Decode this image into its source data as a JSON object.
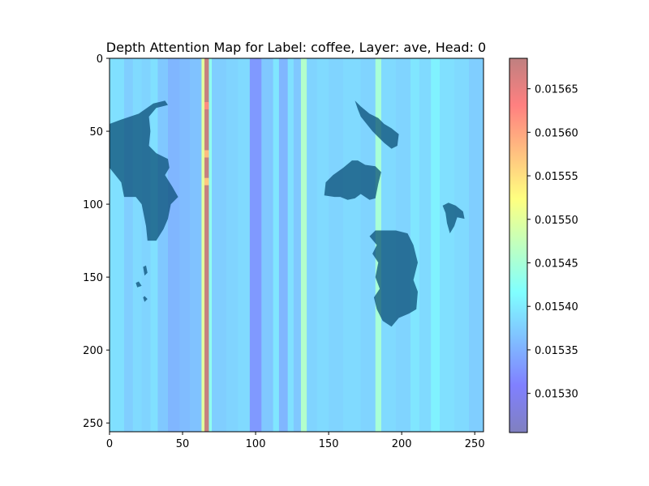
{
  "chart_data": {
    "type": "heatmap",
    "title": "Depth Attention Map for Label: coffee, Layer: ave, Head: 0",
    "xlabel": "",
    "ylabel": "",
    "xlim": [
      0,
      256
    ],
    "ylim": [
      256,
      0
    ],
    "grid": false,
    "colormap": "jet",
    "x_ticks": [
      0,
      50,
      100,
      150,
      200,
      250
    ],
    "y_ticks": [
      0,
      50,
      100,
      150,
      200,
      250
    ],
    "colorbar": {
      "vmin": 0.015255,
      "vmax": 0.015685,
      "ticks": [
        "0.01530",
        "0.01535",
        "0.01540",
        "0.01545",
        "0.01550",
        "0.01555",
        "0.01560",
        "0.01565"
      ],
      "tick_values": [
        0.0153,
        0.01535,
        0.0154,
        0.01545,
        0.0155,
        0.01555,
        0.0156,
        0.01565
      ]
    },
    "column_stripes": [
      {
        "x": [
          0,
          10
        ],
        "value": 0.01539
      },
      {
        "x": [
          10,
          16
        ],
        "value": 0.015375
      },
      {
        "x": [
          16,
          22
        ],
        "value": 0.015385
      },
      {
        "x": [
          22,
          28
        ],
        "value": 0.01538
      },
      {
        "x": [
          28,
          33
        ],
        "value": 0.01539
      },
      {
        "x": [
          33,
          40
        ],
        "value": 0.01537
      },
      {
        "x": [
          40,
          48
        ],
        "value": 0.015355
      },
      {
        "x": [
          48,
          55
        ],
        "value": 0.01536
      },
      {
        "x": [
          55,
          63
        ],
        "value": 0.015365
      },
      {
        "x": [
          63,
          65
        ],
        "value": 0.0155
      },
      {
        "x": [
          65,
          68
        ],
        "value": 0.01568
      },
      {
        "x": [
          68,
          70
        ],
        "value": 0.01543
      },
      {
        "x": [
          70,
          80
        ],
        "value": 0.015375
      },
      {
        "x": [
          80,
          88
        ],
        "value": 0.01538
      },
      {
        "x": [
          88,
          96
        ],
        "value": 0.015385
      },
      {
        "x": [
          96,
          104
        ],
        "value": 0.01533
      },
      {
        "x": [
          104,
          112
        ],
        "value": 0.01537
      },
      {
        "x": [
          112,
          116
        ],
        "value": 0.015395
      },
      {
        "x": [
          116,
          122
        ],
        "value": 0.015355
      },
      {
        "x": [
          122,
          126
        ],
        "value": 0.01539
      },
      {
        "x": [
          126,
          131
        ],
        "value": 0.01537
      },
      {
        "x": [
          131,
          135
        ],
        "value": 0.01546
      },
      {
        "x": [
          135,
          142
        ],
        "value": 0.01538
      },
      {
        "x": [
          142,
          150
        ],
        "value": 0.015385
      },
      {
        "x": [
          150,
          160
        ],
        "value": 0.01538
      },
      {
        "x": [
          160,
          172
        ],
        "value": 0.015385
      },
      {
        "x": [
          172,
          182
        ],
        "value": 0.01538
      },
      {
        "x": [
          182,
          186
        ],
        "value": 0.01545
      },
      {
        "x": [
          186,
          196
        ],
        "value": 0.015385
      },
      {
        "x": [
          196,
          206
        ],
        "value": 0.01538
      },
      {
        "x": [
          206,
          212
        ],
        "value": 0.015395
      },
      {
        "x": [
          212,
          220
        ],
        "value": 0.015385
      },
      {
        "x": [
          220,
          226
        ],
        "value": 0.015405
      },
      {
        "x": [
          226,
          236
        ],
        "value": 0.01539
      },
      {
        "x": [
          236,
          246
        ],
        "value": 0.015385
      },
      {
        "x": [
          246,
          256
        ],
        "value": 0.015375
      }
    ],
    "hot_spots": [
      {
        "x": [
          65,
          68
        ],
        "y": [
          30,
          35
        ],
        "value": 0.01562
      },
      {
        "x": [
          65,
          68
        ],
        "y": [
          63,
          68
        ],
        "value": 0.01558
      },
      {
        "x": [
          65,
          68
        ],
        "y": [
          82,
          87
        ],
        "value": 0.01557
      }
    ],
    "overlay_regions": [
      {
        "name": "land-left",
        "color": "#064a72",
        "points": [
          [
            0,
            45
          ],
          [
            8,
            42
          ],
          [
            20,
            38
          ],
          [
            30,
            31
          ],
          [
            38,
            29
          ],
          [
            40,
            32
          ],
          [
            32,
            34
          ],
          [
            27,
            40
          ],
          [
            28,
            50
          ],
          [
            27,
            60
          ],
          [
            32,
            65
          ],
          [
            40,
            69
          ],
          [
            41,
            75
          ],
          [
            38,
            80
          ],
          [
            43,
            88
          ],
          [
            47,
            95
          ],
          [
            42,
            100
          ],
          [
            40,
            110
          ],
          [
            37,
            117
          ],
          [
            32,
            125
          ],
          [
            26,
            125
          ],
          [
            25,
            115
          ],
          [
            22,
            100
          ],
          [
            18,
            95
          ],
          [
            10,
            95
          ],
          [
            8,
            85
          ],
          [
            0,
            75
          ]
        ]
      },
      {
        "name": "land-left-dots",
        "color": "#064a72",
        "points": [
          [
            25,
            142
          ],
          [
            26,
            147
          ],
          [
            24,
            149
          ],
          [
            23,
            143
          ]
        ]
      },
      {
        "name": "land-left-dot2",
        "color": "#064a72",
        "points": [
          [
            20,
            153
          ],
          [
            22,
            156
          ],
          [
            19,
            157
          ],
          [
            18,
            154
          ]
        ]
      },
      {
        "name": "land-left-dot3",
        "color": "#064a72",
        "points": [
          [
            24,
            163
          ],
          [
            26,
            165
          ],
          [
            24,
            167
          ],
          [
            23,
            164
          ]
        ]
      },
      {
        "name": "land-right-top",
        "color": "#064a72",
        "points": [
          [
            168,
            29
          ],
          [
            172,
            33
          ],
          [
            178,
            38
          ],
          [
            184,
            41
          ],
          [
            188,
            45
          ],
          [
            193,
            48
          ],
          [
            198,
            52
          ],
          [
            197,
            60
          ],
          [
            193,
            62
          ],
          [
            188,
            58
          ],
          [
            184,
            54
          ],
          [
            180,
            50
          ],
          [
            176,
            45
          ],
          [
            172,
            40
          ],
          [
            170,
            35
          ]
        ]
      },
      {
        "name": "land-right-mid",
        "color": "#064a72",
        "points": [
          [
            148,
            85
          ],
          [
            153,
            80
          ],
          [
            160,
            75
          ],
          [
            166,
            70
          ],
          [
            170,
            70
          ],
          [
            175,
            73
          ],
          [
            182,
            74
          ],
          [
            186,
            78
          ],
          [
            184,
            86
          ],
          [
            182,
            96
          ],
          [
            178,
            97
          ],
          [
            172,
            93
          ],
          [
            168,
            96
          ],
          [
            163,
            97
          ],
          [
            158,
            95
          ],
          [
            154,
            95
          ],
          [
            147,
            94
          ]
        ]
      },
      {
        "name": "land-right-bottom",
        "color": "#064a72",
        "points": [
          [
            178,
            122
          ],
          [
            182,
            118
          ],
          [
            190,
            118
          ],
          [
            196,
            118
          ],
          [
            204,
            120
          ],
          [
            208,
            128
          ],
          [
            211,
            140
          ],
          [
            208,
            152
          ],
          [
            211,
            160
          ],
          [
            210,
            172
          ],
          [
            205,
            175
          ],
          [
            198,
            178
          ],
          [
            193,
            184
          ],
          [
            187,
            180
          ],
          [
            183,
            172
          ],
          [
            181,
            164
          ],
          [
            185,
            158
          ],
          [
            182,
            150
          ],
          [
            184,
            140
          ],
          [
            180,
            134
          ],
          [
            183,
            128
          ]
        ]
      },
      {
        "name": "land-far-right",
        "color": "#064a72",
        "points": [
          [
            228,
            101
          ],
          [
            232,
            99
          ],
          [
            237,
            101
          ],
          [
            242,
            105
          ],
          [
            243,
            110
          ],
          [
            238,
            109
          ],
          [
            236,
            115
          ],
          [
            233,
            120
          ],
          [
            231,
            113
          ],
          [
            230,
            106
          ]
        ]
      }
    ]
  }
}
